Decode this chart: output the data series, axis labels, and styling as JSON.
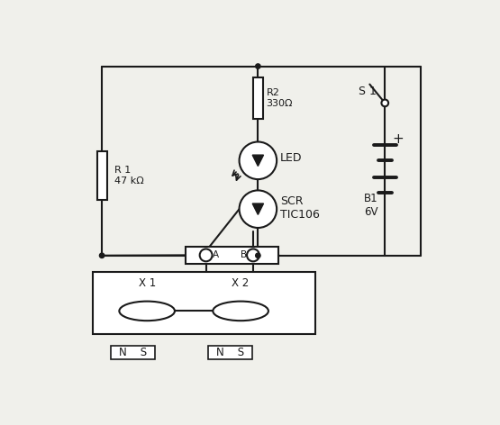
{
  "bg_color": "#f0f0eb",
  "line_color": "#1a1a1a",
  "labels": {
    "R1": "R 1\n47 kΩ",
    "R2": "R2\n330Ω",
    "LED": "LED",
    "SCR": "SCR\nTIC106",
    "S1": "S 1",
    "B1": "B1\n6V",
    "X1": "X 1",
    "X2": "X 2",
    "A": "A",
    "B": "B",
    "NS1": "N    S",
    "NS2": "N    S"
  }
}
